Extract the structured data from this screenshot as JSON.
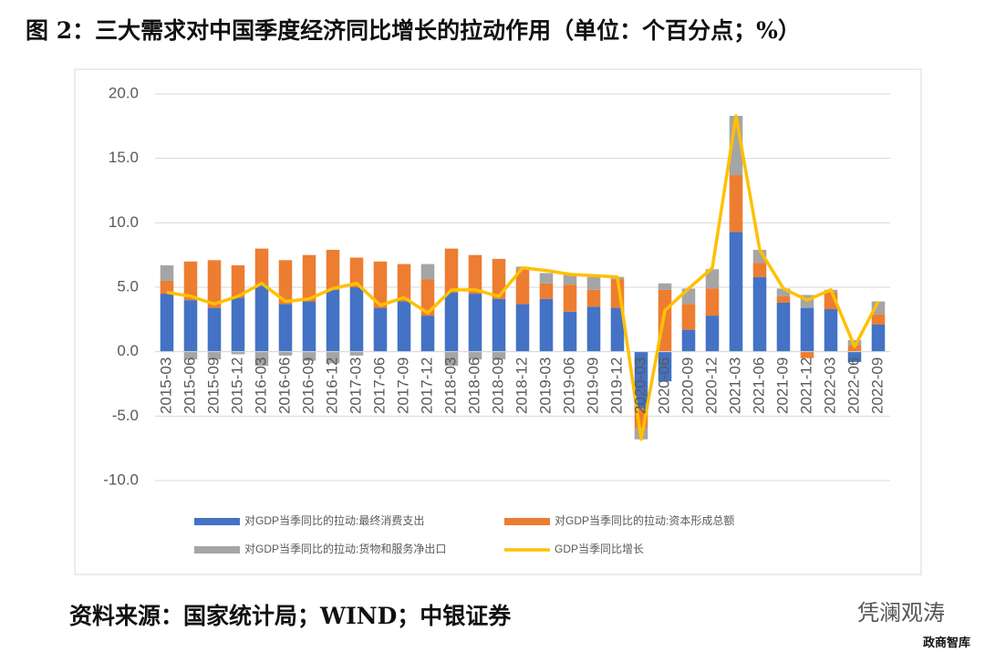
{
  "title": "图 2：三大需求对中国季度经济同比增长的拉动作用（单位：个百分点；%）",
  "source": "资料来源：国家统计局；WIND；中银证券",
  "watermark": "凭澜观涛",
  "footer": "政商智库",
  "chart_data": {
    "type": "bar",
    "stacked": true,
    "grid": true,
    "categories": [
      "2015-03",
      "2015-06",
      "2015-09",
      "2015-12",
      "2016-03",
      "2016-06",
      "2016-09",
      "2016-12",
      "2017-03",
      "2017-06",
      "2017-09",
      "2017-12",
      "2018-03",
      "2018-06",
      "2018-09",
      "2018-12",
      "2019-03",
      "2019-06",
      "2019-09",
      "2019-12",
      "2020-03",
      "2020-06",
      "2020-09",
      "2020-12",
      "2021-03",
      "2021-06",
      "2021-09",
      "2021-12",
      "2022-03",
      "2022-06",
      "2022-09"
    ],
    "series": [
      {
        "name": "对GDP当季同比的拉动:最终消费支出",
        "color": "#4472c4",
        "values": [
          4.5,
          4.0,
          3.4,
          4.2,
          5.2,
          3.7,
          3.9,
          4.8,
          5.0,
          3.4,
          3.9,
          2.8,
          4.6,
          4.5,
          4.1,
          3.7,
          4.1,
          3.1,
          3.5,
          3.4,
          -4.4,
          -2.3,
          1.7,
          2.8,
          9.3,
          5.8,
          3.8,
          3.4,
          3.3,
          -0.8,
          2.1
        ]
      },
      {
        "name": "对GDP当季同比的拉动:资本形成总额",
        "color": "#ed7d31",
        "values": [
          1.0,
          3.0,
          3.7,
          2.5,
          2.8,
          3.4,
          3.6,
          3.1,
          2.3,
          3.6,
          2.9,
          2.8,
          3.4,
          3.0,
          3.1,
          2.7,
          1.2,
          2.1,
          1.3,
          2.2,
          -1.5,
          4.8,
          2.0,
          2.1,
          4.4,
          1.1,
          0.5,
          -0.5,
          1.3,
          0.5,
          0.8
        ]
      },
      {
        "name": "对GDP当季同比的拉动:货物和服务净出口",
        "color": "#a5a5a5",
        "values": [
          1.2,
          -0.6,
          -0.6,
          -0.2,
          -1.1,
          -0.3,
          -0.7,
          -0.9,
          -0.3,
          0,
          0,
          1.2,
          -1.1,
          -0.6,
          -0.6,
          0.2,
          0.8,
          0.8,
          1.0,
          0.2,
          -0.9,
          0.5,
          1.2,
          1.5,
          4.6,
          1.0,
          0.6,
          1.0,
          0.2,
          0.4,
          1.0
        ]
      },
      {
        "name": "GDP当季同比增长",
        "color": "#ffc000",
        "type": "line",
        "values": [
          4.6,
          4.3,
          3.7,
          4.3,
          5.3,
          3.9,
          4.1,
          4.9,
          5.3,
          3.6,
          4.2,
          3.0,
          4.8,
          4.8,
          4.3,
          6.5,
          6.3,
          6.0,
          5.9,
          5.8,
          -6.8,
          3.2,
          4.9,
          6.5,
          18.3,
          7.9,
          4.9,
          4.0,
          4.8,
          0.4,
          3.9
        ]
      }
    ],
    "ylim": [
      -10,
      20
    ],
    "yticks": [
      {
        "value": -10,
        "label": "-10.0"
      },
      {
        "value": -5,
        "label": "-5.0"
      },
      {
        "value": 0,
        "label": "0.0"
      },
      {
        "value": 5,
        "label": "5.0"
      },
      {
        "value": 10,
        "label": "10.0"
      },
      {
        "value": 15,
        "label": "15.0"
      },
      {
        "value": 20,
        "label": "20.0"
      }
    ]
  }
}
